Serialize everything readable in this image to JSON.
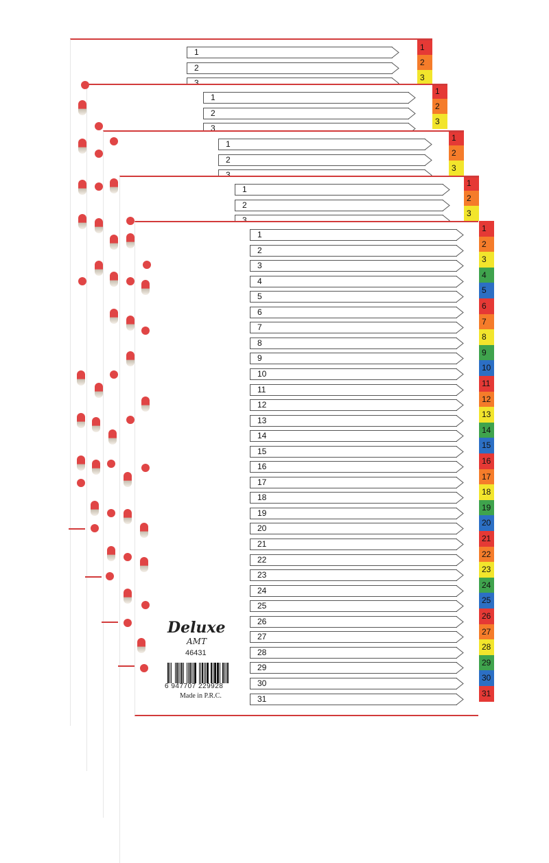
{
  "product": {
    "brand": "Deluxe",
    "sub_brand": "AMT",
    "code": "46431",
    "barcode": "6 947707 229928",
    "origin": "Made in P.R.C."
  },
  "preview_sheets": [
    {
      "labels": [
        "1",
        "2",
        "3"
      ]
    },
    {
      "labels": [
        "1",
        "2",
        "3"
      ]
    },
    {
      "labels": [
        "1",
        "2",
        "3"
      ]
    },
    {
      "labels": [
        "1",
        "2",
        "3"
      ]
    }
  ],
  "front_sheet": {
    "labels": [
      "1",
      "2",
      "3",
      "4",
      "5",
      "6",
      "7",
      "8",
      "9",
      "10",
      "11",
      "12",
      "13",
      "14",
      "15",
      "16",
      "17",
      "18",
      "19",
      "20",
      "21",
      "22",
      "23",
      "24",
      "25",
      "26",
      "27",
      "28",
      "29",
      "30",
      "31"
    ]
  },
  "tab_colors": [
    "#e53935",
    "#f57c2a",
    "#f2e52c",
    "#3fa34d",
    "#2c6fc4"
  ],
  "accent": "#d23a3a"
}
